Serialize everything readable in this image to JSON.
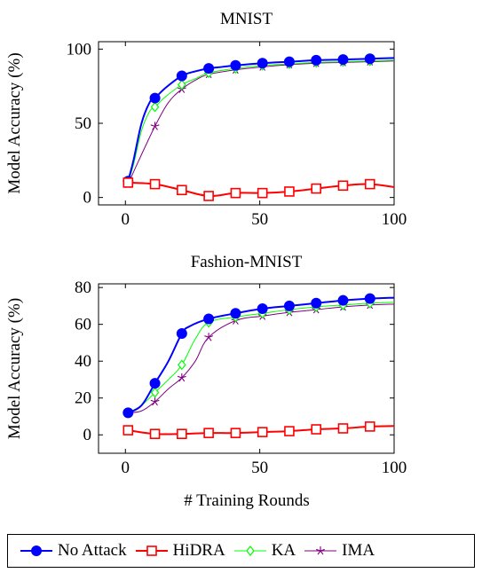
{
  "figure": {
    "ylabel": "Model Accuracy (%)",
    "xlabel": "# Training Rounds"
  },
  "chart_data": [
    {
      "type": "line",
      "title": "MNIST",
      "xlabel": "",
      "ylabel": "Model Accuracy (%)",
      "xlim": [
        -10,
        100
      ],
      "ylim": [
        -5,
        105
      ],
      "xticks": [
        0,
        50,
        100
      ],
      "yticks": [
        0,
        50,
        100
      ],
      "grid": false,
      "series": [
        {
          "name": "No Attack",
          "color": "#0000ff",
          "marker": "circle-filled",
          "x": [
            1,
            3,
            6,
            9,
            11,
            15,
            21,
            26,
            31,
            36,
            41,
            51,
            61,
            71,
            81,
            91,
            100
          ],
          "y": [
            11,
            25,
            50,
            64,
            67,
            74,
            82,
            85,
            87,
            88,
            89,
            90.5,
            91.5,
            92.5,
            93,
            93.5,
            94
          ]
        },
        {
          "name": "HiDRA",
          "color": "#ff0000",
          "marker": "square-open",
          "x": [
            1,
            11,
            21,
            31,
            41,
            51,
            61,
            71,
            81,
            91,
            100
          ],
          "y": [
            10,
            9,
            5,
            1,
            3,
            3,
            4,
            6,
            8,
            9,
            7
          ]
        },
        {
          "name": "KA",
          "color": "#00ff00",
          "marker": "diamond-open",
          "x": [
            1,
            3,
            6,
            9,
            11,
            15,
            21,
            26,
            31,
            41,
            51,
            61,
            71,
            81,
            91,
            100
          ],
          "y": [
            10,
            22,
            45,
            58,
            61,
            68,
            76,
            80,
            84,
            87,
            89,
            90,
            91,
            91.5,
            92,
            92.5
          ]
        },
        {
          "name": "IMA",
          "color": "#800080",
          "marker": "star",
          "x": [
            1,
            5,
            11,
            16,
            21,
            26,
            31,
            41,
            51,
            61,
            71,
            81,
            91,
            100
          ],
          "y": [
            9,
            25,
            48,
            64,
            73,
            79,
            83,
            86,
            88,
            89.5,
            90.5,
            91,
            91.5,
            92
          ]
        }
      ]
    },
    {
      "type": "line",
      "title": "Fashion-MNIST",
      "xlabel": "# Training Rounds",
      "ylabel": "Model Accuracy (%)",
      "xlim": [
        -10,
        100
      ],
      "ylim": [
        -10,
        82
      ],
      "xticks": [
        0,
        50,
        100
      ],
      "yticks": [
        0,
        20,
        40,
        60,
        80
      ],
      "grid": false,
      "series": [
        {
          "name": "No Attack",
          "color": "#0000ff",
          "marker": "circle-filled",
          "x": [
            1,
            6,
            11,
            16,
            21,
            24,
            31,
            41,
            51,
            61,
            71,
            81,
            91,
            100
          ],
          "y": [
            12,
            16,
            28,
            40,
            55,
            59,
            63,
            66,
            68.5,
            70,
            71.5,
            73,
            74,
            74.5
          ]
        },
        {
          "name": "HiDRA",
          "color": "#ff0000",
          "marker": "square-open",
          "x": [
            1,
            11,
            21,
            31,
            41,
            51,
            61,
            71,
            81,
            91,
            100
          ],
          "y": [
            2.5,
            0.5,
            0.5,
            1,
            1,
            1.5,
            2,
            3,
            3.5,
            4.5,
            4.8
          ]
        },
        {
          "name": "KA",
          "color": "#00ff00",
          "marker": "diamond-open",
          "x": [
            1,
            6,
            11,
            16,
            21,
            26,
            31,
            41,
            51,
            61,
            71,
            81,
            91,
            100
          ],
          "y": [
            12,
            16,
            23,
            30,
            38,
            52,
            61,
            64,
            66,
            68,
            69.5,
            70.5,
            71.5,
            72
          ]
        },
        {
          "name": "IMA",
          "color": "#800080",
          "marker": "star",
          "x": [
            1,
            6,
            11,
            16,
            21,
            26,
            31,
            41,
            51,
            61,
            71,
            81,
            91,
            100
          ],
          "y": [
            12,
            13,
            18,
            25,
            31,
            40,
            53,
            62,
            64.5,
            66.5,
            68,
            69.5,
            70.5,
            71
          ]
        }
      ]
    }
  ],
  "legend": {
    "placement": "bottom",
    "items": [
      {
        "label": "No Attack",
        "color": "#0000ff",
        "marker": "circle-filled"
      },
      {
        "label": "HiDRA",
        "color": "#ff0000",
        "marker": "square-open"
      },
      {
        "label": "KA",
        "color": "#00ff00",
        "marker": "diamond-open"
      },
      {
        "label": "IMA",
        "color": "#800080",
        "marker": "star"
      }
    ]
  }
}
